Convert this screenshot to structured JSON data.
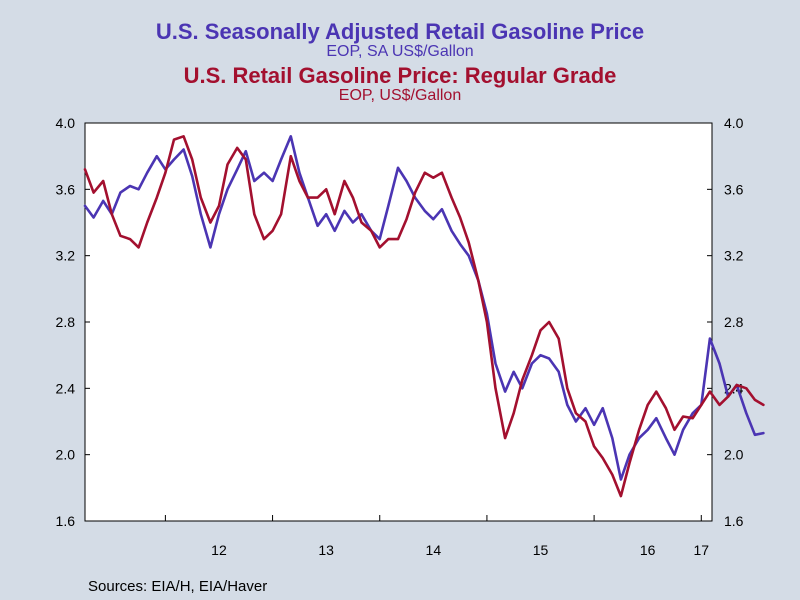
{
  "chart_data": {
    "type": "line",
    "titles": [
      {
        "title": "U.S. Seasonally Adjusted Retail Gasoline Price",
        "subtitle": "EOP, SA US$/Gallon",
        "color": "#4b35b3"
      },
      {
        "title": "U.S. Retail Gasoline Price: Regular Grade",
        "subtitle": "EOP, US$/Gallon",
        "color": "#a3102f"
      }
    ],
    "ylim": [
      1.6,
      4.0
    ],
    "y_ticks": [
      "1.6",
      "2.0",
      "2.4",
      "2.8",
      "3.2",
      "3.6",
      "4.0"
    ],
    "y_tick_values": [
      1.6,
      2.0,
      2.4,
      2.8,
      3.2,
      3.6,
      4.0
    ],
    "xlim": [
      2011.25,
      2017.1
    ],
    "x_ticks": [
      {
        "label": "12",
        "value": 2012.5
      },
      {
        "label": "13",
        "value": 2013.5
      },
      {
        "label": "14",
        "value": 2014.5
      },
      {
        "label": "15",
        "value": 2015.5
      },
      {
        "label": "16",
        "value": 2016.5
      },
      {
        "label": "17",
        "value": 2017.0
      }
    ],
    "x_gridlines": [
      2012,
      2013,
      2014,
      2015,
      2016,
      2017
    ],
    "grid": false,
    "series": [
      {
        "color": "#4b35b3",
        "points": [
          [
            2011.25,
            3.5
          ],
          [
            2011.33,
            3.43
          ],
          [
            2011.42,
            3.53
          ],
          [
            2011.5,
            3.45
          ],
          [
            2011.58,
            3.58
          ],
          [
            2011.67,
            3.62
          ],
          [
            2011.75,
            3.6
          ],
          [
            2011.83,
            3.7
          ],
          [
            2011.92,
            3.8
          ],
          [
            2012.0,
            3.72
          ],
          [
            2012.08,
            3.78
          ],
          [
            2012.17,
            3.84
          ],
          [
            2012.25,
            3.68
          ],
          [
            2012.33,
            3.45
          ],
          [
            2012.42,
            3.25
          ],
          [
            2012.5,
            3.45
          ],
          [
            2012.58,
            3.6
          ],
          [
            2012.67,
            3.72
          ],
          [
            2012.75,
            3.83
          ],
          [
            2012.83,
            3.65
          ],
          [
            2012.92,
            3.7
          ],
          [
            2013.0,
            3.65
          ],
          [
            2013.08,
            3.78
          ],
          [
            2013.17,
            3.92
          ],
          [
            2013.25,
            3.7
          ],
          [
            2013.33,
            3.55
          ],
          [
            2013.42,
            3.38
          ],
          [
            2013.5,
            3.45
          ],
          [
            2013.58,
            3.35
          ],
          [
            2013.67,
            3.47
          ],
          [
            2013.75,
            3.4
          ],
          [
            2013.83,
            3.45
          ],
          [
            2013.92,
            3.35
          ],
          [
            2014.0,
            3.3
          ],
          [
            2014.08,
            3.5
          ],
          [
            2014.17,
            3.73
          ],
          [
            2014.25,
            3.65
          ],
          [
            2014.33,
            3.55
          ],
          [
            2014.42,
            3.47
          ],
          [
            2014.5,
            3.42
          ],
          [
            2014.58,
            3.48
          ],
          [
            2014.67,
            3.35
          ],
          [
            2014.75,
            3.27
          ],
          [
            2014.83,
            3.2
          ],
          [
            2014.92,
            3.05
          ],
          [
            2015.0,
            2.85
          ],
          [
            2015.08,
            2.55
          ],
          [
            2015.17,
            2.38
          ],
          [
            2015.25,
            2.5
          ],
          [
            2015.33,
            2.4
          ],
          [
            2015.42,
            2.55
          ],
          [
            2015.5,
            2.6
          ],
          [
            2015.58,
            2.58
          ],
          [
            2015.67,
            2.5
          ],
          [
            2015.75,
            2.3
          ],
          [
            2015.83,
            2.2
          ],
          [
            2015.92,
            2.28
          ],
          [
            2016.0,
            2.18
          ],
          [
            2016.08,
            2.28
          ],
          [
            2016.17,
            2.1
          ],
          [
            2016.25,
            1.85
          ],
          [
            2016.33,
            2.0
          ],
          [
            2016.42,
            2.1
          ],
          [
            2016.5,
            2.15
          ],
          [
            2016.58,
            2.22
          ],
          [
            2016.67,
            2.1
          ],
          [
            2016.75,
            2.0
          ],
          [
            2016.83,
            2.15
          ],
          [
            2016.92,
            2.25
          ],
          [
            2017.0,
            2.3
          ],
          [
            2017.08,
            2.7
          ],
          [
            2017.17,
            2.55
          ],
          [
            2017.25,
            2.35
          ],
          [
            2017.33,
            2.42
          ],
          [
            2017.42,
            2.25
          ],
          [
            2017.5,
            2.12
          ],
          [
            2017.58,
            2.13
          ]
        ]
      },
      {
        "color": "#a3102f",
        "points": [
          [
            2011.25,
            3.72
          ],
          [
            2011.33,
            3.58
          ],
          [
            2011.42,
            3.65
          ],
          [
            2011.5,
            3.45
          ],
          [
            2011.58,
            3.32
          ],
          [
            2011.67,
            3.3
          ],
          [
            2011.75,
            3.25
          ],
          [
            2011.83,
            3.4
          ],
          [
            2011.92,
            3.55
          ],
          [
            2012.0,
            3.7
          ],
          [
            2012.08,
            3.9
          ],
          [
            2012.17,
            3.92
          ],
          [
            2012.25,
            3.78
          ],
          [
            2012.33,
            3.55
          ],
          [
            2012.42,
            3.4
          ],
          [
            2012.5,
            3.5
          ],
          [
            2012.58,
            3.75
          ],
          [
            2012.67,
            3.85
          ],
          [
            2012.75,
            3.78
          ],
          [
            2012.83,
            3.45
          ],
          [
            2012.92,
            3.3
          ],
          [
            2013.0,
            3.35
          ],
          [
            2013.08,
            3.45
          ],
          [
            2013.17,
            3.8
          ],
          [
            2013.25,
            3.65
          ],
          [
            2013.33,
            3.55
          ],
          [
            2013.42,
            3.55
          ],
          [
            2013.5,
            3.6
          ],
          [
            2013.58,
            3.45
          ],
          [
            2013.67,
            3.65
          ],
          [
            2013.75,
            3.55
          ],
          [
            2013.83,
            3.4
          ],
          [
            2013.92,
            3.35
          ],
          [
            2014.0,
            3.25
          ],
          [
            2014.08,
            3.3
          ],
          [
            2014.17,
            3.3
          ],
          [
            2014.25,
            3.42
          ],
          [
            2014.33,
            3.58
          ],
          [
            2014.42,
            3.7
          ],
          [
            2014.5,
            3.67
          ],
          [
            2014.58,
            3.7
          ],
          [
            2014.67,
            3.55
          ],
          [
            2014.75,
            3.43
          ],
          [
            2014.83,
            3.28
          ],
          [
            2014.92,
            3.05
          ],
          [
            2015.0,
            2.8
          ],
          [
            2015.08,
            2.4
          ],
          [
            2015.17,
            2.1
          ],
          [
            2015.25,
            2.25
          ],
          [
            2015.33,
            2.45
          ],
          [
            2015.42,
            2.6
          ],
          [
            2015.5,
            2.75
          ],
          [
            2015.58,
            2.8
          ],
          [
            2015.67,
            2.7
          ],
          [
            2015.75,
            2.4
          ],
          [
            2015.83,
            2.25
          ],
          [
            2015.92,
            2.2
          ],
          [
            2016.0,
            2.05
          ],
          [
            2016.08,
            1.98
          ],
          [
            2016.17,
            1.88
          ],
          [
            2016.25,
            1.75
          ],
          [
            2016.33,
            1.95
          ],
          [
            2016.42,
            2.15
          ],
          [
            2016.5,
            2.3
          ],
          [
            2016.58,
            2.38
          ],
          [
            2016.67,
            2.28
          ],
          [
            2016.75,
            2.15
          ],
          [
            2016.83,
            2.23
          ],
          [
            2016.92,
            2.22
          ],
          [
            2017.0,
            2.3
          ],
          [
            2017.08,
            2.38
          ],
          [
            2017.17,
            2.3
          ],
          [
            2017.25,
            2.35
          ],
          [
            2017.33,
            2.42
          ],
          [
            2017.42,
            2.4
          ],
          [
            2017.5,
            2.33
          ],
          [
            2017.58,
            2.3
          ]
        ]
      }
    ]
  },
  "source": "Sources:  EIA/H, EIA/Haver"
}
